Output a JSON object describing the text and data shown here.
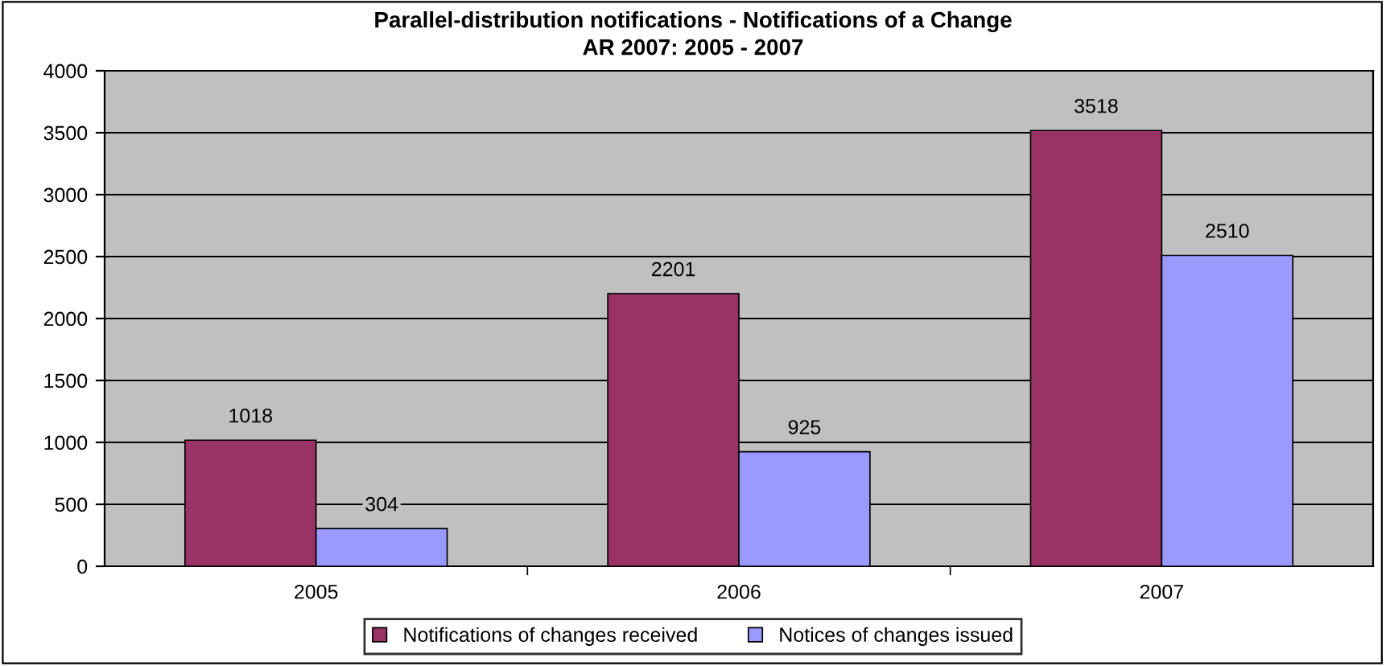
{
  "chart_data": {
    "type": "bar",
    "title": "Parallel-distribution notifications - Notifications of a Change",
    "subtitle": "AR 2007: 2005 - 2007",
    "categories": [
      "2005",
      "2006",
      "2007"
    ],
    "series": [
      {
        "name": "Notifications of changes received",
        "color": "#993366",
        "values": [
          1018,
          2201,
          3518
        ]
      },
      {
        "name": "Notices of changes issued",
        "color": "#9999ff",
        "values": [
          304,
          925,
          2510
        ]
      }
    ],
    "ylim": [
      0,
      4000
    ],
    "yticks": [
      0,
      500,
      1000,
      1500,
      2000,
      2500,
      3000,
      3500,
      4000
    ],
    "grid": "y",
    "legend": "bottom",
    "data_labels": true
  }
}
